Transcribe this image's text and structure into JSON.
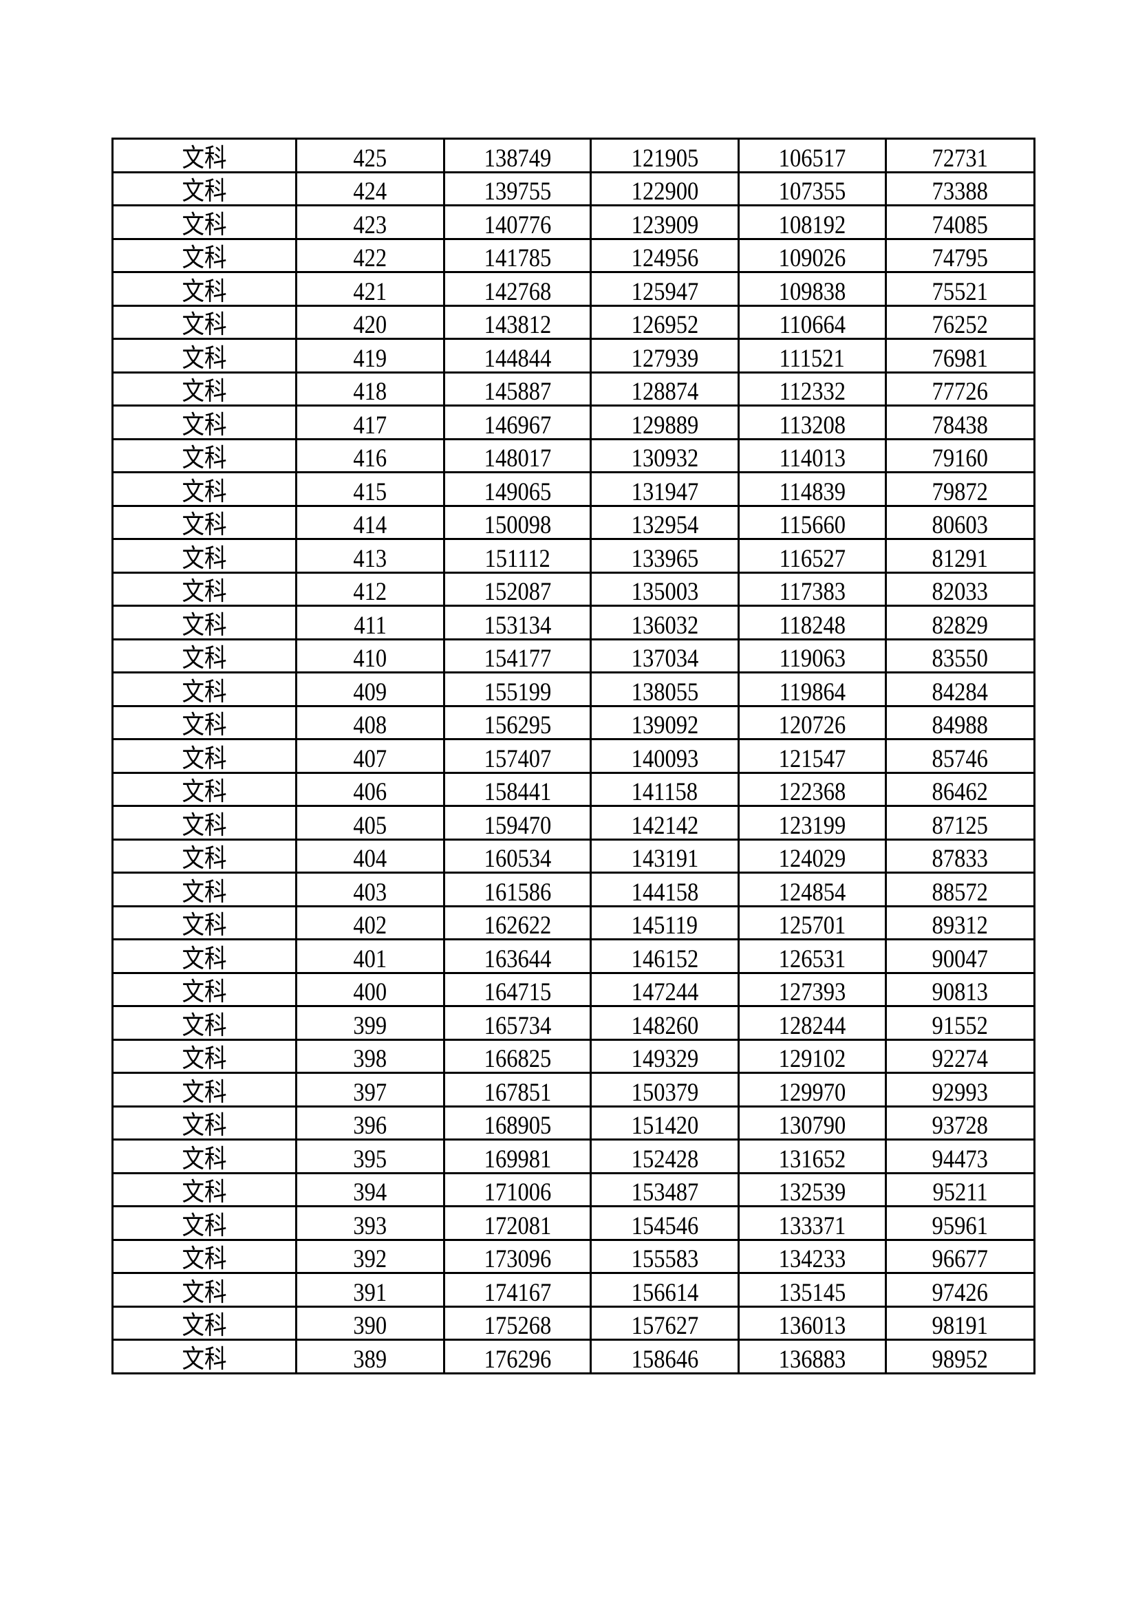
{
  "table": {
    "rows": [
      [
        "文科",
        "425",
        "138749",
        "121905",
        "106517",
        "72731"
      ],
      [
        "文科",
        "424",
        "139755",
        "122900",
        "107355",
        "73388"
      ],
      [
        "文科",
        "423",
        "140776",
        "123909",
        "108192",
        "74085"
      ],
      [
        "文科",
        "422",
        "141785",
        "124956",
        "109026",
        "74795"
      ],
      [
        "文科",
        "421",
        "142768",
        "125947",
        "109838",
        "75521"
      ],
      [
        "文科",
        "420",
        "143812",
        "126952",
        "110664",
        "76252"
      ],
      [
        "文科",
        "419",
        "144844",
        "127939",
        "111521",
        "76981"
      ],
      [
        "文科",
        "418",
        "145887",
        "128874",
        "112332",
        "77726"
      ],
      [
        "文科",
        "417",
        "146967",
        "129889",
        "113208",
        "78438"
      ],
      [
        "文科",
        "416",
        "148017",
        "130932",
        "114013",
        "79160"
      ],
      [
        "文科",
        "415",
        "149065",
        "131947",
        "114839",
        "79872"
      ],
      [
        "文科",
        "414",
        "150098",
        "132954",
        "115660",
        "80603"
      ],
      [
        "文科",
        "413",
        "151112",
        "133965",
        "116527",
        "81291"
      ],
      [
        "文科",
        "412",
        "152087",
        "135003",
        "117383",
        "82033"
      ],
      [
        "文科",
        "411",
        "153134",
        "136032",
        "118248",
        "82829"
      ],
      [
        "文科",
        "410",
        "154177",
        "137034",
        "119063",
        "83550"
      ],
      [
        "文科",
        "409",
        "155199",
        "138055",
        "119864",
        "84284"
      ],
      [
        "文科",
        "408",
        "156295",
        "139092",
        "120726",
        "84988"
      ],
      [
        "文科",
        "407",
        "157407",
        "140093",
        "121547",
        "85746"
      ],
      [
        "文科",
        "406",
        "158441",
        "141158",
        "122368",
        "86462"
      ],
      [
        "文科",
        "405",
        "159470",
        "142142",
        "123199",
        "87125"
      ],
      [
        "文科",
        "404",
        "160534",
        "143191",
        "124029",
        "87833"
      ],
      [
        "文科",
        "403",
        "161586",
        "144158",
        "124854",
        "88572"
      ],
      [
        "文科",
        "402",
        "162622",
        "145119",
        "125701",
        "89312"
      ],
      [
        "文科",
        "401",
        "163644",
        "146152",
        "126531",
        "90047"
      ],
      [
        "文科",
        "400",
        "164715",
        "147244",
        "127393",
        "90813"
      ],
      [
        "文科",
        "399",
        "165734",
        "148260",
        "128244",
        "91552"
      ],
      [
        "文科",
        "398",
        "166825",
        "149329",
        "129102",
        "92274"
      ],
      [
        "文科",
        "397",
        "167851",
        "150379",
        "129970",
        "92993"
      ],
      [
        "文科",
        "396",
        "168905",
        "151420",
        "130790",
        "93728"
      ],
      [
        "文科",
        "395",
        "169981",
        "152428",
        "131652",
        "94473"
      ],
      [
        "文科",
        "394",
        "171006",
        "153487",
        "132539",
        "95211"
      ],
      [
        "文科",
        "393",
        "172081",
        "154546",
        "133371",
        "95961"
      ],
      [
        "文科",
        "392",
        "173096",
        "155583",
        "134233",
        "96677"
      ],
      [
        "文科",
        "391",
        "174167",
        "156614",
        "135145",
        "97426"
      ],
      [
        "文科",
        "390",
        "175268",
        "157627",
        "136013",
        "98191"
      ],
      [
        "文科",
        "389",
        "176296",
        "158646",
        "136883",
        "98952"
      ]
    ]
  }
}
